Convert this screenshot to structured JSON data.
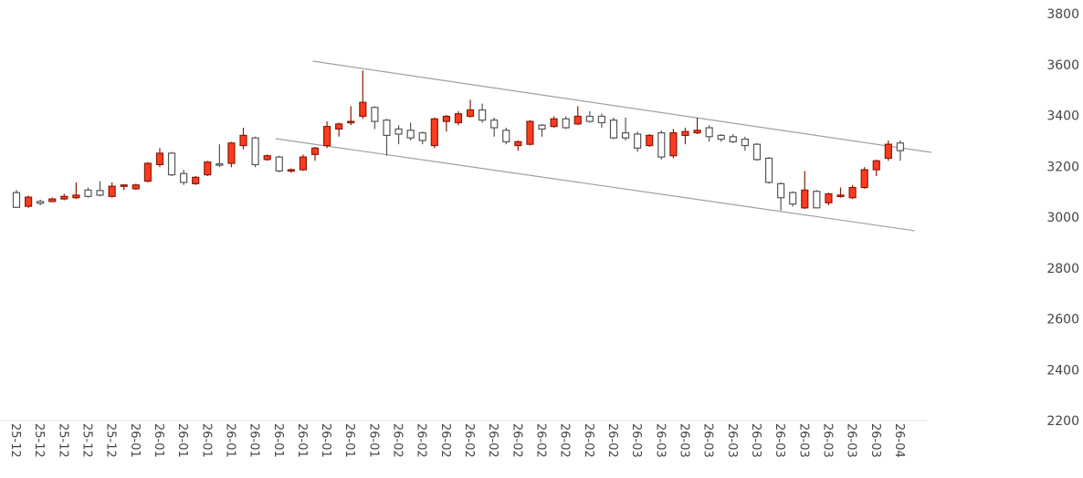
{
  "chart_data": {
    "type": "candlestick",
    "categories": [
      "25-12",
      null,
      "25-12",
      null,
      "25-12",
      null,
      "25-12",
      null,
      "25-12",
      null,
      "26-01",
      null,
      "26-01",
      null,
      "26-01",
      null,
      "26-01",
      null,
      "26-01",
      null,
      "26-01",
      null,
      "26-01",
      null,
      "26-01",
      null,
      "26-01",
      null,
      "26-01",
      null,
      "26-01",
      null,
      "26-02",
      null,
      "26-02",
      null,
      "26-02",
      null,
      "26-02",
      null,
      "26-02",
      null,
      "26-02",
      null,
      "26-02",
      null,
      "26-02",
      null,
      "26-02",
      null,
      "26-02",
      null,
      "26-03",
      null,
      "26-03",
      null,
      "26-03",
      null,
      "26-03",
      null,
      "26-03",
      null,
      "26-03",
      null,
      "26-03",
      null,
      "26-03",
      null,
      "26-03",
      null,
      "26-03",
      null,
      "26-03",
      null,
      "26-04"
    ],
    "open": [
      3100,
      3046,
      3065,
      3065,
      3075,
      3080,
      3110,
      3108,
      3085,
      3125,
      3115,
      3145,
      3210,
      3255,
      3175,
      3135,
      3170,
      3213,
      3215,
      3285,
      3315,
      3230,
      3240,
      3185,
      3190,
      3250,
      3285,
      3350,
      3375,
      3400,
      3435,
      3385,
      3350,
      3345,
      3335,
      3285,
      3380,
      3375,
      3400,
      3425,
      3385,
      3345,
      3285,
      3290,
      3365,
      3360,
      3390,
      3370,
      3400,
      3400,
      3385,
      3335,
      3330,
      3285,
      3335,
      3245,
      3325,
      3335,
      3355,
      3325,
      3320,
      3310,
      3290,
      3235,
      3135,
      3100,
      3040,
      3105,
      3060,
      3085,
      3080,
      3120,
      3190,
      3235,
      3295
    ],
    "high": [
      3110,
      3088,
      3072,
      3080,
      3095,
      3140,
      3120,
      3145,
      3140,
      3132,
      3135,
      3220,
      3275,
      3260,
      3190,
      3165,
      3225,
      3290,
      3300,
      3355,
      3320,
      3250,
      3245,
      3195,
      3250,
      3280,
      3380,
      3375,
      3440,
      3580,
      3440,
      3390,
      3365,
      3375,
      3340,
      3395,
      3405,
      3420,
      3465,
      3450,
      3395,
      3355,
      3305,
      3385,
      3370,
      3400,
      3400,
      3440,
      3420,
      3410,
      3395,
      3395,
      3340,
      3330,
      3345,
      3350,
      3355,
      3395,
      3365,
      3330,
      3330,
      3320,
      3295,
      3240,
      3140,
      3105,
      3185,
      3110,
      3100,
      3120,
      3130,
      3200,
      3230,
      3305,
      3305
    ],
    "low": [
      3040,
      3040,
      3050,
      3062,
      3070,
      3075,
      3080,
      3085,
      3080,
      3110,
      3110,
      3140,
      3200,
      3165,
      3130,
      3130,
      3165,
      3200,
      3200,
      3270,
      3200,
      3225,
      3180,
      3178,
      3185,
      3225,
      3275,
      3320,
      3365,
      3390,
      3350,
      3245,
      3290,
      3305,
      3290,
      3275,
      3340,
      3365,
      3395,
      3375,
      3320,
      3290,
      3265,
      3285,
      3320,
      3355,
      3350,
      3365,
      3375,
      3355,
      3310,
      3305,
      3260,
      3280,
      3230,
      3235,
      3290,
      3330,
      3300,
      3300,
      3295,
      3265,
      3225,
      3135,
      3030,
      3045,
      3035,
      3040,
      3050,
      3080,
      3075,
      3115,
      3165,
      3225,
      3225
    ],
    "close": [
      3042,
      3082,
      3058,
      3075,
      3085,
      3090,
      3085,
      3090,
      3125,
      3130,
      3130,
      3215,
      3255,
      3170,
      3140,
      3160,
      3220,
      3208,
      3295,
      3325,
      3210,
      3245,
      3185,
      3190,
      3240,
      3275,
      3360,
      3370,
      3380,
      3455,
      3380,
      3325,
      3330,
      3315,
      3305,
      3390,
      3400,
      3410,
      3425,
      3385,
      3355,
      3300,
      3300,
      3380,
      3350,
      3390,
      3355,
      3400,
      3380,
      3375,
      3315,
      3315,
      3275,
      3325,
      3240,
      3335,
      3340,
      3345,
      3320,
      3310,
      3300,
      3285,
      3230,
      3140,
      3080,
      3055,
      3110,
      3040,
      3095,
      3090,
      3120,
      3190,
      3225,
      3290,
      3265
    ],
    "up_color": "#ff3b1f",
    "down_color": "#ffffff",
    "ylim": [
      2200,
      3800
    ],
    "yticks": [
      2200,
      2400,
      2600,
      2800,
      3000,
      3200,
      3400,
      3600,
      3800
    ],
    "trendlines": [
      {
        "start": [
          24.8,
          3617
        ],
        "end": [
          76.6,
          3258
        ]
      },
      {
        "start": [
          21.7,
          3312
        ],
        "end": [
          75.2,
          2950
        ]
      }
    ],
    "grid": false
  }
}
